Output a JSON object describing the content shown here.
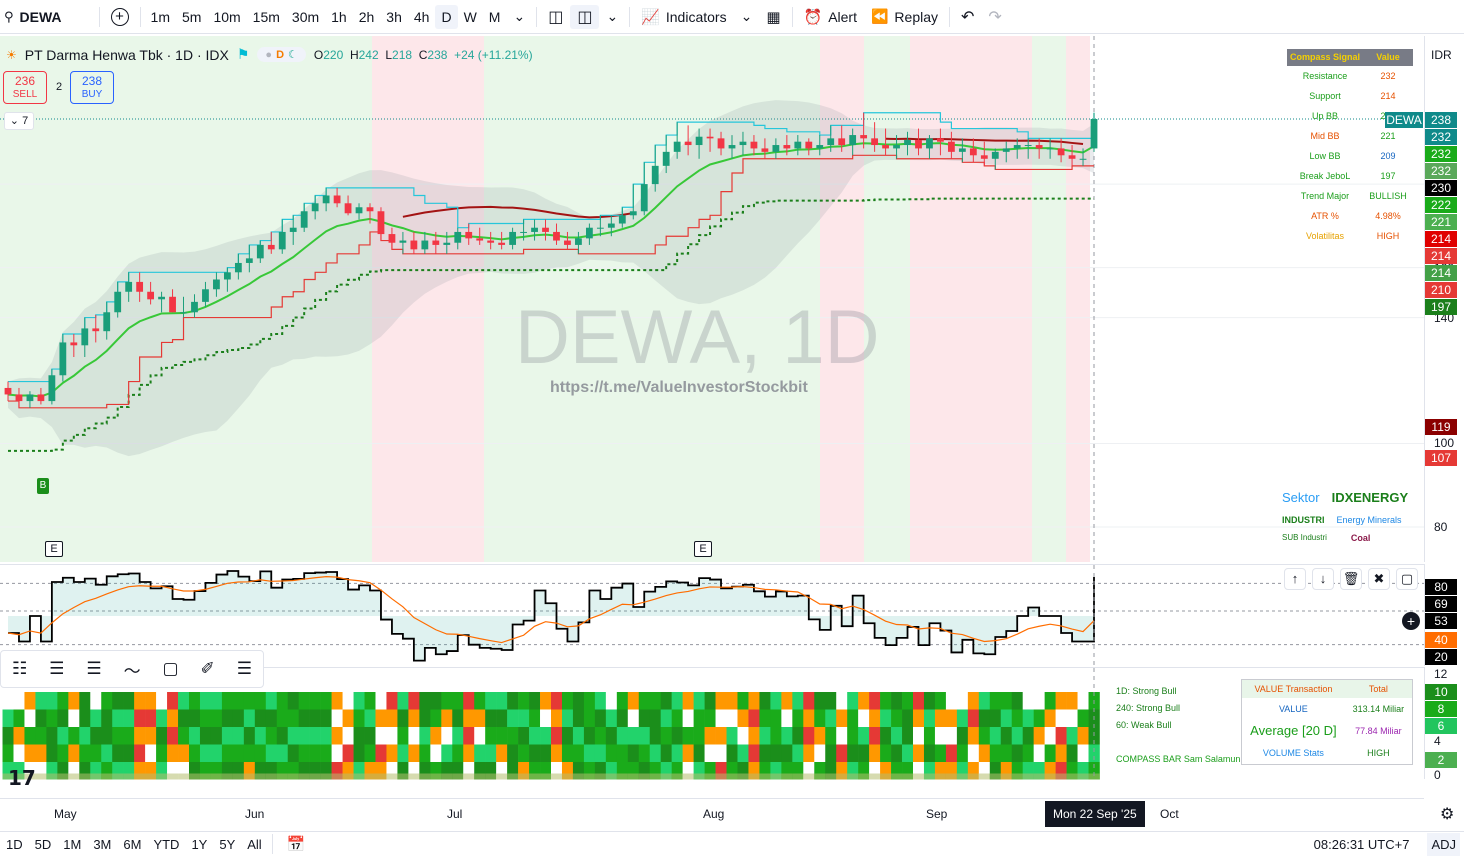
{
  "toolbar": {
    "ticker": "DEWA",
    "intervals": [
      "1m",
      "5m",
      "10m",
      "15m",
      "30m",
      "1h",
      "2h",
      "3h",
      "4h",
      "D",
      "W",
      "M"
    ],
    "active_interval": "D",
    "indicators_label": "Indicators",
    "alert_label": "Alert",
    "replay_label": "Replay"
  },
  "legend": {
    "title": "PT Darma Henwa Tbk · 1D · IDX",
    "pill": "D",
    "open_label": "O",
    "open": "220",
    "high_label": "H",
    "high": "242",
    "low_label": "L",
    "low": "218",
    "close_label": "C",
    "close": "238",
    "change": "+24 (+11.21%)"
  },
  "trade": {
    "sell_price": "236",
    "sell_label": "SELL",
    "spread": "2",
    "buy_price": "238",
    "buy_label": "BUY",
    "indicator_count": "7"
  },
  "watermark": {
    "symbol": "DEWA, 1D",
    "link": "https://t.me/ValueInvestorStockbit"
  },
  "compass": {
    "header": [
      "Compass Signal",
      "Value"
    ],
    "rows": [
      {
        "label": "Resistance",
        "value": "232",
        "label_color": "#1b9e1b",
        "value_color": "#e65100"
      },
      {
        "label": "Support",
        "value": "214",
        "label_color": "#1b9e1b",
        "value_color": "#e65100"
      },
      {
        "label": "Up BB",
        "value": "238",
        "label_color": "#1b9e1b",
        "value_color": "#1b9e1b"
      },
      {
        "label": "Mid BB",
        "value": "221",
        "label_color": "#e65100",
        "value_color": "#1b9e1b"
      },
      {
        "label": "Low BB",
        "value": "209",
        "label_color": "#1b9e1b",
        "value_color": "#1565c0"
      },
      {
        "label": "Break JeboL",
        "value": "197",
        "label_color": "#1b9e1b",
        "value_color": "#1b9e1b"
      },
      {
        "label": "Trend Major",
        "value": "BULLISH",
        "label_color": "#1b9e1b",
        "value_color": "#1b9e1b"
      },
      {
        "label": "ATR %",
        "value": "4.98%",
        "label_color": "#e65100",
        "value_color": "#e65100"
      },
      {
        "label": "Volatilitas",
        "value": "HIGH",
        "label_color": "#e6a100",
        "value_color": "#e65100"
      }
    ]
  },
  "price_axis": {
    "currency": "IDR",
    "ticker_tag": "DEWA",
    "levels": [
      "160",
      "140",
      "100",
      "80"
    ],
    "tags": [
      {
        "v": "238",
        "color": "#0f8a8a"
      },
      {
        "v": "232",
        "color": "#0f8a8a"
      },
      {
        "v": "232",
        "color": "#1aab1a"
      },
      {
        "v": "232",
        "color": "#5aa85a"
      },
      {
        "v": "230",
        "color": "#000000"
      },
      {
        "v": "222",
        "color": "#1aab1a"
      },
      {
        "v": "221",
        "color": "#4caf50"
      },
      {
        "v": "214",
        "color": "#e00000"
      },
      {
        "v": "214",
        "color": "#e53935"
      },
      {
        "v": "214",
        "color": "#43a047"
      },
      {
        "v": "210",
        "color": "#e53935"
      },
      {
        "v": "197",
        "color": "#1b7f1b"
      },
      {
        "v": "119",
        "color": "#8b0000"
      },
      {
        "v": "107",
        "color": "#e53935"
      }
    ]
  },
  "sector": {
    "sektor_label": "Sektor",
    "sektor": "IDXENERGY",
    "industri_label": "INDUSTRI",
    "industri": "Energy Minerals",
    "sub_label": "SUB Industri",
    "sub": "Coal"
  },
  "markers": {
    "buy_marker": "B",
    "earnings": "E"
  },
  "oscillator": {
    "levels": [
      {
        "v": "80",
        "color": "#000000"
      },
      {
        "v": "69",
        "color": "#000000"
      },
      {
        "v": "53",
        "color": "#000000"
      },
      {
        "v": "40",
        "color": "#ff6d00"
      },
      {
        "v": "20",
        "color": "#000000"
      }
    ]
  },
  "compass_bar": {
    "labels": [
      "1D: Strong Bull",
      "240: Strong Bull",
      "60: Weak Bull"
    ],
    "footer": "COMPASS BAR Sam Salamun",
    "axis": [
      {
        "v": "12",
        "tag": false,
        "color": "#131722"
      },
      {
        "v": "10",
        "tag": true,
        "color": "#1b8e1b"
      },
      {
        "v": "8",
        "tag": true,
        "color": "#1aab1a"
      },
      {
        "v": "6",
        "tag": true,
        "color": "#22c55e"
      },
      {
        "v": "4",
        "tag": false,
        "color": "#131722"
      },
      {
        "v": "2",
        "tag": true,
        "color": "#4caf50"
      },
      {
        "v": "0",
        "tag": false,
        "color": "#131722"
      }
    ]
  },
  "value_box": {
    "header": [
      "VALUE Transaction",
      "Total"
    ],
    "value_label": "VALUE",
    "value": "313.14 Miliar",
    "avg_label": "Average [20 D]",
    "avg": "77.84 Miliar",
    "vol_label": "VOLUME Stats",
    "vol": "HIGH"
  },
  "time_axis": {
    "months": [
      "May",
      "Jun",
      "Jul",
      "Aug",
      "Sep",
      "Oct"
    ],
    "cursor_date": "Mon 22 Sep '25"
  },
  "bottom": {
    "ranges": [
      "1D",
      "5D",
      "1M",
      "3M",
      "6M",
      "YTD",
      "1Y",
      "5Y",
      "All"
    ],
    "clock": "08:26:31 UTC+7",
    "adj": "ADJ"
  },
  "chart_data": {
    "type": "candlestick",
    "x": [
      "2025-04-22",
      "2025-04-23",
      "2025-04-24",
      "2025-04-25",
      "2025-04-28",
      "2025-04-29",
      "2025-04-30",
      "2025-05-02",
      "2025-05-05",
      "2025-05-06",
      "2025-05-07",
      "2025-05-08",
      "2025-05-09",
      "2025-05-14",
      "2025-05-15",
      "2025-05-16",
      "2025-05-19",
      "2025-05-20",
      "2025-05-21",
      "2025-05-22",
      "2025-05-23",
      "2025-05-26",
      "2025-05-27",
      "2025-05-28",
      "2025-06-02",
      "2025-06-03",
      "2025-06-04",
      "2025-06-05",
      "2025-06-10",
      "2025-06-11",
      "2025-06-12",
      "2025-06-13",
      "2025-06-16",
      "2025-06-17",
      "2025-06-18",
      "2025-06-19",
      "2025-06-20",
      "2025-06-23",
      "2025-06-24",
      "2025-06-25",
      "2025-06-26",
      "2025-06-30",
      "2025-07-01",
      "2025-07-02",
      "2025-07-03",
      "2025-07-04",
      "2025-07-07",
      "2025-07-08",
      "2025-07-09",
      "2025-07-10",
      "2025-07-11",
      "2025-07-14",
      "2025-07-15",
      "2025-07-16",
      "2025-07-17",
      "2025-07-18",
      "2025-07-21",
      "2025-07-22",
      "2025-07-23",
      "2025-07-24",
      "2025-07-25",
      "2025-07-28",
      "2025-07-29",
      "2025-07-30",
      "2025-07-31",
      "2025-08-01",
      "2025-08-04",
      "2025-08-05",
      "2025-08-06",
      "2025-08-07",
      "2025-08-08",
      "2025-08-11",
      "2025-08-12",
      "2025-08-13",
      "2025-08-14",
      "2025-08-15",
      "2025-08-19",
      "2025-08-20",
      "2025-08-21",
      "2025-08-22",
      "2025-08-25",
      "2025-08-26",
      "2025-08-27",
      "2025-08-28",
      "2025-08-29",
      "2025-09-01",
      "2025-09-02",
      "2025-09-03",
      "2025-09-04",
      "2025-09-08",
      "2025-09-09",
      "2025-09-10",
      "2025-09-11",
      "2025-09-12",
      "2025-09-15",
      "2025-09-16",
      "2025-09-17",
      "2025-09-18",
      "2025-09-19",
      "2025-09-22"
    ],
    "open": [
      116,
      114,
      112,
      114,
      112,
      120,
      131,
      130,
      136,
      135,
      142,
      150,
      154,
      150,
      147,
      148,
      142,
      142,
      146,
      151,
      155,
      158,
      162,
      164,
      170,
      168,
      176,
      178,
      186,
      190,
      194,
      190,
      185,
      188,
      186,
      175,
      171,
      172,
      168,
      172,
      170,
      171,
      176,
      173,
      172,
      171,
      170,
      176,
      176,
      178,
      176,
      172,
      170,
      173,
      178,
      178,
      180,
      184,
      186,
      200,
      210,
      218,
      224,
      222,
      227,
      226,
      220,
      222,
      224,
      220,
      218,
      222,
      220,
      224,
      220,
      222,
      226,
      222,
      228,
      226,
      222,
      220,
      222,
      225,
      220,
      226,
      224,
      218,
      220,
      216,
      214,
      218,
      220,
      222,
      222,
      220,
      220,
      216,
      214,
      220
    ],
    "high": [
      118,
      116,
      115,
      116,
      122,
      134,
      134,
      140,
      141,
      146,
      154,
      158,
      158,
      154,
      150,
      151,
      148,
      149,
      154,
      158,
      160,
      166,
      170,
      172,
      176,
      182,
      184,
      190,
      194,
      198,
      198,
      194,
      190,
      190,
      188,
      178,
      176,
      176,
      176,
      176,
      176,
      178,
      180,
      178,
      176,
      176,
      178,
      182,
      182,
      182,
      180,
      176,
      176,
      180,
      184,
      184,
      188,
      200,
      212,
      222,
      228,
      236,
      234,
      232,
      232,
      230,
      228,
      230,
      228,
      226,
      226,
      228,
      228,
      226,
      228,
      234,
      234,
      232,
      242,
      236,
      232,
      228,
      230,
      232,
      228,
      232,
      230,
      226,
      226,
      224,
      220,
      224,
      226,
      226,
      226,
      226,
      226,
      222,
      220,
      242
    ],
    "low": [
      112,
      110,
      110,
      111,
      111,
      118,
      126,
      126,
      131,
      132,
      140,
      146,
      146,
      145,
      142,
      142,
      140,
      140,
      144,
      148,
      150,
      155,
      158,
      162,
      166,
      166,
      170,
      176,
      182,
      186,
      188,
      184,
      182,
      180,
      172,
      168,
      166,
      166,
      166,
      166,
      166,
      168,
      170,
      170,
      168,
      168,
      168,
      172,
      172,
      172,
      170,
      168,
      166,
      170,
      174,
      174,
      178,
      182,
      184,
      196,
      206,
      214,
      216,
      214,
      218,
      216,
      214,
      216,
      216,
      214,
      214,
      216,
      216,
      216,
      216,
      218,
      218,
      216,
      220,
      218,
      216,
      214,
      216,
      216,
      214,
      216,
      214,
      212,
      212,
      210,
      208,
      212,
      214,
      214,
      214,
      214,
      212,
      210,
      210,
      218
    ],
    "close": [
      114,
      112,
      114,
      112,
      120,
      131,
      130,
      136,
      135,
      142,
      150,
      154,
      150,
      147,
      148,
      142,
      142,
      146,
      151,
      155,
      158,
      162,
      164,
      170,
      168,
      176,
      178,
      186,
      190,
      194,
      190,
      185,
      188,
      186,
      175,
      171,
      172,
      168,
      172,
      170,
      171,
      176,
      173,
      172,
      171,
      170,
      176,
      176,
      178,
      176,
      172,
      170,
      173,
      178,
      178,
      180,
      184,
      186,
      200,
      210,
      218,
      224,
      222,
      227,
      226,
      220,
      222,
      224,
      220,
      218,
      222,
      220,
      224,
      220,
      222,
      226,
      222,
      228,
      226,
      222,
      220,
      222,
      225,
      220,
      226,
      224,
      218,
      220,
      216,
      214,
      218,
      220,
      222,
      222,
      220,
      220,
      216,
      214,
      214,
      238
    ],
    "ylim": [
      70,
      246
    ],
    "title": "PT Darma Henwa Tbk · 1D · IDX"
  }
}
